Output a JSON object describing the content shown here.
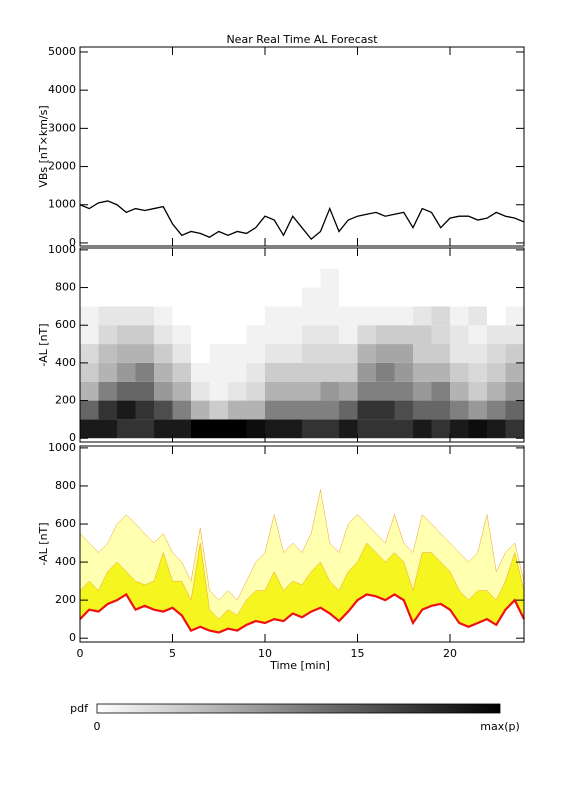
{
  "chart_data": [
    {
      "type": "line",
      "title": "Near Real Time AL Forecast",
      "ylabel": "VBs [nT×km/s]",
      "x": [
        0,
        0.5,
        1,
        1.5,
        2,
        2.5,
        3,
        3.5,
        4,
        4.5,
        5,
        5.5,
        6,
        6.5,
        7,
        7.5,
        8,
        8.5,
        9,
        9.5,
        10,
        10.5,
        11,
        11.5,
        12,
        12.5,
        13,
        13.5,
        14,
        14.5,
        15,
        15.5,
        16,
        16.5,
        17,
        17.5,
        18,
        18.5,
        19,
        19.5,
        20,
        20.5,
        21,
        21.5,
        22,
        22.5,
        23,
        23.5,
        24
      ],
      "values": [
        1000,
        900,
        1050,
        1100,
        1000,
        800,
        900,
        850,
        900,
        950,
        500,
        200,
        300,
        250,
        150,
        300,
        200,
        300,
        250,
        400,
        700,
        600,
        200,
        700,
        400,
        100,
        300,
        900,
        300,
        600,
        700,
        750,
        800,
        700,
        750,
        800,
        400,
        900,
        800,
        400,
        650,
        700,
        700,
        600,
        650,
        800,
        700,
        650,
        550
      ],
      "color": "#000000",
      "xlim": [
        0,
        24
      ],
      "xticks": [
        0,
        5,
        10,
        15,
        20
      ],
      "ylim": [
        -80,
        5130
      ],
      "yticks": [
        0,
        1000,
        2000,
        3000,
        4000,
        5000
      ]
    },
    {
      "type": "heatmap",
      "ylabel": "-AL [nT]",
      "xbins": [
        0,
        1,
        2,
        3,
        4,
        5,
        6,
        7,
        8,
        9,
        10,
        11,
        12,
        13,
        14,
        15,
        16,
        17,
        18,
        19,
        20,
        21,
        22,
        23,
        24
      ],
      "ybins": [
        0,
        100,
        200,
        300,
        400,
        500,
        600,
        700,
        800,
        900,
        1000
      ],
      "cmap": [
        "#ffffff",
        "#000000"
      ],
      "z": [
        [
          0.9,
          0.6,
          0.3,
          0.2,
          0.15,
          0.05,
          0.05,
          0,
          0,
          0
        ],
        [
          0.9,
          0.8,
          0.5,
          0.3,
          0.25,
          0.15,
          0.1,
          0,
          0,
          0
        ],
        [
          0.8,
          0.9,
          0.6,
          0.4,
          0.3,
          0.2,
          0.1,
          0,
          0,
          0
        ],
        [
          0.8,
          0.8,
          0.6,
          0.5,
          0.3,
          0.2,
          0.1,
          0,
          0,
          0
        ],
        [
          0.9,
          0.7,
          0.4,
          0.3,
          0.2,
          0.1,
          0.05,
          0,
          0,
          0
        ],
        [
          0.9,
          0.5,
          0.3,
          0.2,
          0.1,
          0.05,
          0,
          0,
          0,
          0
        ],
        [
          1,
          0.3,
          0.1,
          0.05,
          0,
          0,
          0,
          0,
          0,
          0
        ],
        [
          1,
          0.2,
          0.05,
          0.05,
          0.05,
          0,
          0,
          0,
          0,
          0
        ],
        [
          1,
          0.3,
          0.1,
          0.05,
          0.05,
          0,
          0,
          0,
          0,
          0
        ],
        [
          0.95,
          0.3,
          0.15,
          0.1,
          0.05,
          0.05,
          0,
          0,
          0,
          0
        ],
        [
          0.9,
          0.5,
          0.3,
          0.2,
          0.1,
          0.05,
          0.05,
          0,
          0,
          0
        ],
        [
          0.9,
          0.5,
          0.3,
          0.2,
          0.1,
          0.05,
          0.05,
          0,
          0,
          0
        ],
        [
          0.8,
          0.5,
          0.3,
          0.2,
          0.15,
          0.1,
          0.05,
          0.05,
          0,
          0
        ],
        [
          0.8,
          0.5,
          0.4,
          0.2,
          0.15,
          0.1,
          0.05,
          0.05,
          0.05,
          0
        ],
        [
          0.9,
          0.6,
          0.35,
          0.2,
          0.15,
          0.05,
          0.05,
          0,
          0,
          0
        ],
        [
          0.8,
          0.8,
          0.5,
          0.4,
          0.3,
          0.15,
          0.05,
          0,
          0,
          0
        ],
        [
          0.8,
          0.8,
          0.5,
          0.5,
          0.35,
          0.2,
          0.05,
          0,
          0,
          0
        ],
        [
          0.8,
          0.7,
          0.5,
          0.4,
          0.35,
          0.2,
          0.05,
          0,
          0,
          0
        ],
        [
          0.9,
          0.6,
          0.4,
          0.3,
          0.2,
          0.2,
          0.1,
          0,
          0,
          0
        ],
        [
          0.8,
          0.6,
          0.5,
          0.3,
          0.2,
          0.15,
          0.15,
          0,
          0,
          0
        ],
        [
          0.9,
          0.5,
          0.3,
          0.2,
          0.1,
          0.1,
          0.05,
          0,
          0,
          0
        ],
        [
          0.95,
          0.4,
          0.2,
          0.15,
          0.1,
          0.05,
          0.1,
          0,
          0,
          0
        ],
        [
          0.9,
          0.5,
          0.3,
          0.2,
          0.15,
          0.1,
          0,
          0,
          0,
          0
        ],
        [
          0.8,
          0.6,
          0.4,
          0.3,
          0.2,
          0.1,
          0.05,
          0,
          0,
          0
        ]
      ],
      "xlim": [
        0,
        24
      ],
      "xticks": [
        0,
        5,
        10,
        15,
        20
      ],
      "ylim": [
        -20,
        1010
      ],
      "yticks": [
        0,
        200,
        400,
        600,
        800,
        1000
      ]
    },
    {
      "type": "band",
      "ylabel": "-AL [nT]",
      "xlabel": "Time [min]",
      "x": [
        0,
        0.5,
        1,
        1.5,
        2,
        2.5,
        3,
        3.5,
        4,
        4.5,
        5,
        5.5,
        6,
        6.5,
        7,
        7.5,
        8,
        8.5,
        9,
        9.5,
        10,
        10.5,
        11,
        11.5,
        12,
        12.5,
        13,
        13.5,
        14,
        14.5,
        15,
        15.5,
        16,
        16.5,
        17,
        17.5,
        18,
        18.5,
        19,
        19.5,
        20,
        20.5,
        21,
        21.5,
        22,
        22.5,
        23,
        23.5,
        24
      ],
      "bands": [
        {
          "color": "#ffffb0",
          "values": [
            550,
            500,
            450,
            500,
            600,
            650,
            600,
            550,
            500,
            550,
            450,
            400,
            300,
            580,
            250,
            200,
            250,
            200,
            300,
            400,
            450,
            650,
            450,
            500,
            450,
            550,
            780,
            500,
            450,
            600,
            650,
            600,
            550,
            500,
            650,
            500,
            450,
            650,
            600,
            550,
            500,
            450,
            400,
            450,
            650,
            350,
            450,
            500,
            300
          ]
        },
        {
          "color": "#f5f520",
          "values": [
            250,
            300,
            250,
            350,
            400,
            350,
            300,
            280,
            300,
            450,
            300,
            300,
            200,
            500,
            150,
            100,
            150,
            120,
            200,
            250,
            250,
            350,
            250,
            300,
            280,
            350,
            400,
            300,
            250,
            350,
            400,
            500,
            450,
            400,
            450,
            400,
            250,
            450,
            450,
            400,
            350,
            250,
            200,
            250,
            250,
            200,
            300,
            450,
            250
          ]
        }
      ],
      "line": {
        "color": "#ee1111",
        "values": [
          100,
          150,
          140,
          180,
          200,
          230,
          150,
          170,
          150,
          140,
          160,
          120,
          40,
          60,
          40,
          30,
          50,
          40,
          70,
          90,
          80,
          100,
          90,
          130,
          110,
          140,
          160,
          130,
          90,
          140,
          200,
          230,
          220,
          200,
          230,
          200,
          80,
          150,
          170,
          180,
          150,
          80,
          60,
          80,
          100,
          70,
          150,
          200,
          100
        ]
      },
      "xlim": [
        0,
        24
      ],
      "xticks": [
        0,
        5,
        10,
        15,
        20
      ],
      "ylim": [
        -20,
        1010
      ],
      "yticks": [
        0,
        200,
        400,
        600,
        800,
        1000
      ]
    }
  ],
  "colorbar": {
    "label": "pdf",
    "min_label": "0",
    "max_label": "max(p)"
  }
}
